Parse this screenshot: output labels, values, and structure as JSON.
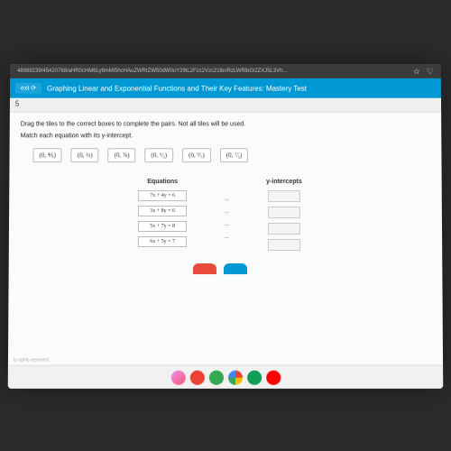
{
  "url_bar": {
    "url": "48988239/45420768/aHR0cHM6Ly9mMi5hcHAuZWRtZW50dW0uY29tL2Fzc2Vzc21lbnRzLWRlbGl2ZXJ5L3Vh...",
    "star": "☆",
    "heart": "♡"
  },
  "header": {
    "tab": "ext ⟳",
    "title": "Graphing Linear and Exponential Functions and Their Key Features: Mastery Test"
  },
  "subrow": {
    "num": "5"
  },
  "content": {
    "line1": "Drag the tiles to the correct boxes to complete the pairs. Not all tiles will be used.",
    "line2": "Match each equation with its y-intercept."
  },
  "tiles": [
    "(0, ⅘)",
    "(0, ⅔)",
    "(0, ⅞)",
    "(0, ⁶⁄₅)",
    "(0, ⁹⁄₇)",
    "(0, ⁷⁄₃)"
  ],
  "columns": {
    "eq": "Equations",
    "yi": "y-intercepts"
  },
  "equations": [
    "7x + 4y = 6",
    "3x + 8y = 6",
    "5x + 7y = 8",
    "6x + 5y = 7"
  ],
  "footer": "ts rights reserved.",
  "taskbar": [
    "●",
    "M",
    "●",
    "●",
    "●",
    "▶"
  ]
}
